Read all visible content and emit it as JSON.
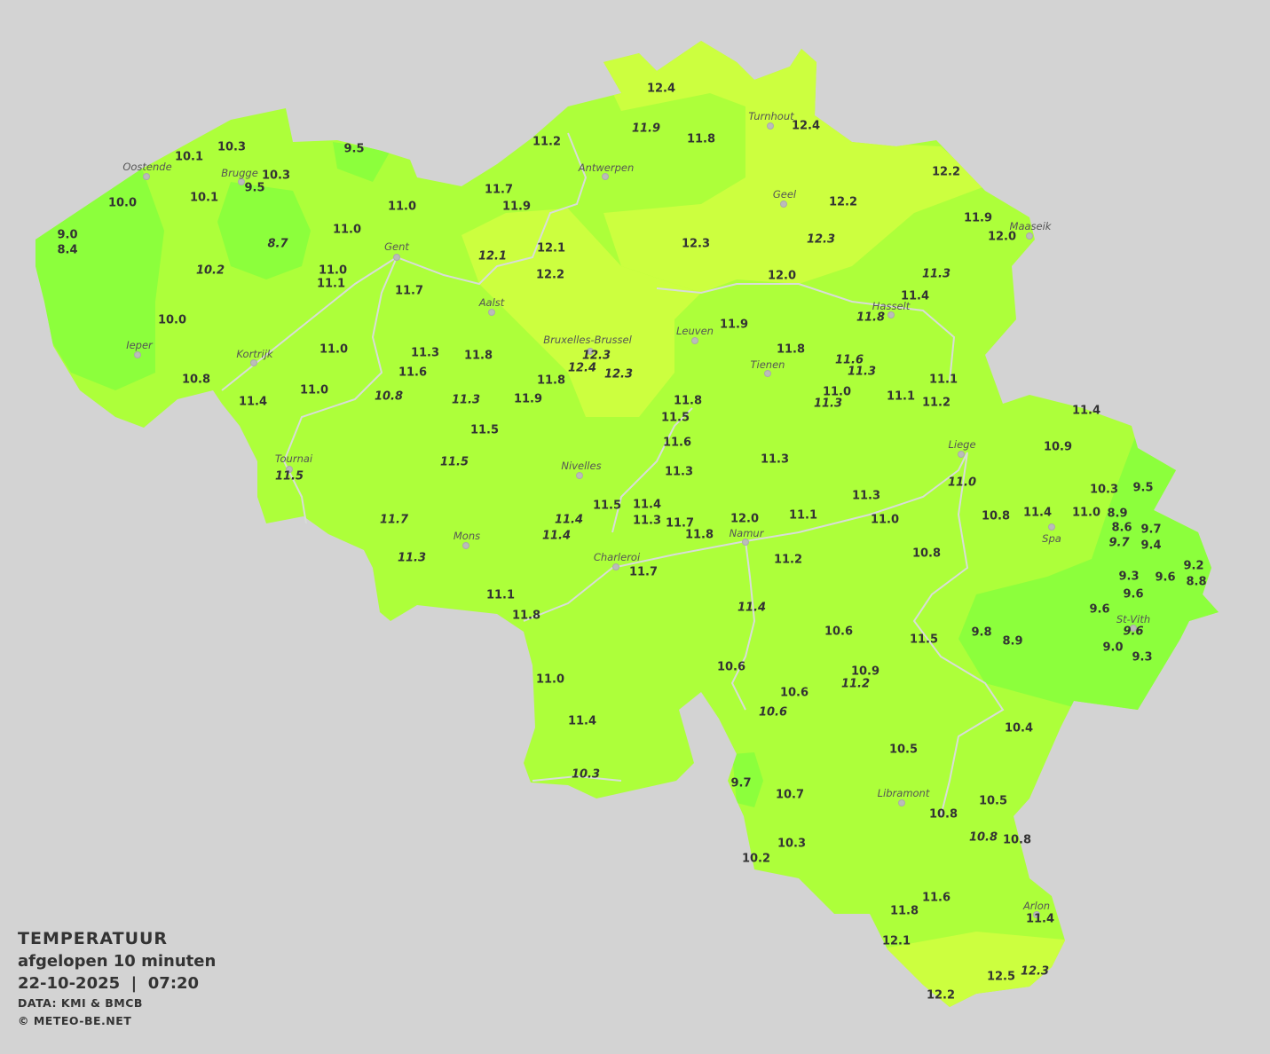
{
  "legend": {
    "title": "TEMPERATUUR",
    "subtitle": "afgelopen 10 minuten",
    "datetime": "22-10-2025  |  07:20",
    "source": "DATA: KMI & BMCB",
    "copyright": "© METEO-BE.NET"
  },
  "colors": {
    "background": "#d3d3d3",
    "land_base": "#adff3a",
    "warm_zone": "#ccff3f",
    "cool_zone": "#8cff3c",
    "rivers": "#d8dcd8",
    "text": "#333333"
  },
  "cities": [
    "Oostende",
    "Brugge",
    "Antwerpen",
    "Turnhout",
    "Geel",
    "Maaseik",
    "Gent",
    "Hasselt",
    "Aalst",
    "Leuven",
    "Ieper",
    "Kortrijk",
    "Bruxelles-Brussel",
    "Tienen",
    "Liege",
    "Tournai",
    "Nivelles",
    "Spa",
    "Mons",
    "Namur",
    "Charleroi",
    "St-Vith",
    "Libramont",
    "Arlon"
  ],
  "stations": [
    {
      "v": "12.4"
    },
    {
      "v": "11.9",
      "i": true
    },
    {
      "v": "11.8"
    },
    {
      "v": "12.4"
    },
    {
      "v": "10.3"
    },
    {
      "v": "10.1"
    },
    {
      "v": "9.5"
    },
    {
      "v": "11.2"
    },
    {
      "v": "10.3"
    },
    {
      "v": "9.5"
    },
    {
      "v": "10.0"
    },
    {
      "v": "10.1"
    },
    {
      "v": "11.7"
    },
    {
      "v": "11.9"
    },
    {
      "v": "11.0"
    },
    {
      "v": "12.2"
    },
    {
      "v": "12.2"
    },
    {
      "v": "9.0"
    },
    {
      "v": "8.4"
    },
    {
      "v": "11.0"
    },
    {
      "v": "8.7",
      "i": true
    },
    {
      "v": "11.9"
    },
    {
      "v": "12.0"
    },
    {
      "v": "12.1"
    },
    {
      "v": "12.1",
      "i": true
    },
    {
      "v": "12.3"
    },
    {
      "v": "12.3",
      "i": true
    },
    {
      "v": "10.2",
      "i": true
    },
    {
      "v": "11.0"
    },
    {
      "v": "11.1"
    },
    {
      "v": "12.2"
    },
    {
      "v": "12.0"
    },
    {
      "v": "11.3",
      "i": true
    },
    {
      "v": "11.7"
    },
    {
      "v": "11.4"
    },
    {
      "v": "11.8",
      "i": true
    },
    {
      "v": "10.0"
    },
    {
      "v": "11.9"
    },
    {
      "v": "11.0"
    },
    {
      "v": "11.3"
    },
    {
      "v": "11.8"
    },
    {
      "v": "12.3",
      "i": true
    },
    {
      "v": "12.4",
      "i": true
    },
    {
      "v": "12.3",
      "i": true
    },
    {
      "v": "11.8"
    },
    {
      "v": "11.6",
      "i": true
    },
    {
      "v": "11.3",
      "i": true
    },
    {
      "v": "11.6"
    },
    {
      "v": "10.8"
    },
    {
      "v": "11.8"
    },
    {
      "v": "11.0"
    },
    {
      "v": "10.8",
      "i": true
    },
    {
      "v": "11.3",
      "i": true
    },
    {
      "v": "11.4"
    },
    {
      "v": "11.9"
    },
    {
      "v": "11.8"
    },
    {
      "v": "11.0"
    },
    {
      "v": "11.3",
      "i": true
    },
    {
      "v": "11.1"
    },
    {
      "v": "11.1"
    },
    {
      "v": "11.2"
    },
    {
      "v": "11.4"
    },
    {
      "v": "11.5"
    },
    {
      "v": "11.5"
    },
    {
      "v": "11.6"
    },
    {
      "v": "10.9"
    },
    {
      "v": "11.5",
      "i": true
    },
    {
      "v": "11.3"
    },
    {
      "v": "11.5",
      "i": true
    },
    {
      "v": "11.3"
    },
    {
      "v": "10.3"
    },
    {
      "v": "9.5"
    },
    {
      "v": "11.0",
      "i": true
    },
    {
      "v": "11.3"
    },
    {
      "v": "11.5"
    },
    {
      "v": "11.4"
    },
    {
      "v": "10.8"
    },
    {
      "v": "11.4"
    },
    {
      "v": "11.0"
    },
    {
      "v": "8.9"
    },
    {
      "v": "11.7",
      "i": true
    },
    {
      "v": "11.4",
      "i": true
    },
    {
      "v": "11.3"
    },
    {
      "v": "11.7"
    },
    {
      "v": "12.0"
    },
    {
      "v": "11.1"
    },
    {
      "v": "11.0"
    },
    {
      "v": "8.6"
    },
    {
      "v": "9.7"
    },
    {
      "v": "11.4",
      "i": true
    },
    {
      "v": "9.7",
      "i": true
    },
    {
      "v": "9.4"
    },
    {
      "v": "11.8"
    },
    {
      "v": "10.8"
    },
    {
      "v": "11.3",
      "i": true
    },
    {
      "v": "11.2"
    },
    {
      "v": "11.7"
    },
    {
      "v": "9.3"
    },
    {
      "v": "9.2"
    },
    {
      "v": "9.6"
    },
    {
      "v": "8.8"
    },
    {
      "v": "9.6"
    },
    {
      "v": "11.1"
    },
    {
      "v": "11.4",
      "i": true
    },
    {
      "v": "9.6"
    },
    {
      "v": "11.8"
    },
    {
      "v": "9.8"
    },
    {
      "v": "8.9"
    },
    {
      "v": "10.6"
    },
    {
      "v": "11.5"
    },
    {
      "v": "9.6",
      "i": true
    },
    {
      "v": "9.0"
    },
    {
      "v": "9.3"
    },
    {
      "v": "10.6"
    },
    {
      "v": "10.9"
    },
    {
      "v": "11.2",
      "i": true
    },
    {
      "v": "11.0"
    },
    {
      "v": "10.6"
    },
    {
      "v": "10.6",
      "i": true
    },
    {
      "v": "11.4"
    },
    {
      "v": "10.4"
    },
    {
      "v": "10.5"
    },
    {
      "v": "10.3",
      "i": true
    },
    {
      "v": "9.7"
    },
    {
      "v": "10.7"
    },
    {
      "v": "10.5"
    },
    {
      "v": "10.8"
    },
    {
      "v": "10.8",
      "i": true
    },
    {
      "v": "10.8"
    },
    {
      "v": "10.3"
    },
    {
      "v": "10.2"
    },
    {
      "v": "11.6"
    },
    {
      "v": "11.8"
    },
    {
      "v": "11.4"
    },
    {
      "v": "12.1"
    },
    {
      "v": "12.5"
    },
    {
      "v": "12.3",
      "i": true
    },
    {
      "v": "12.2"
    }
  ]
}
